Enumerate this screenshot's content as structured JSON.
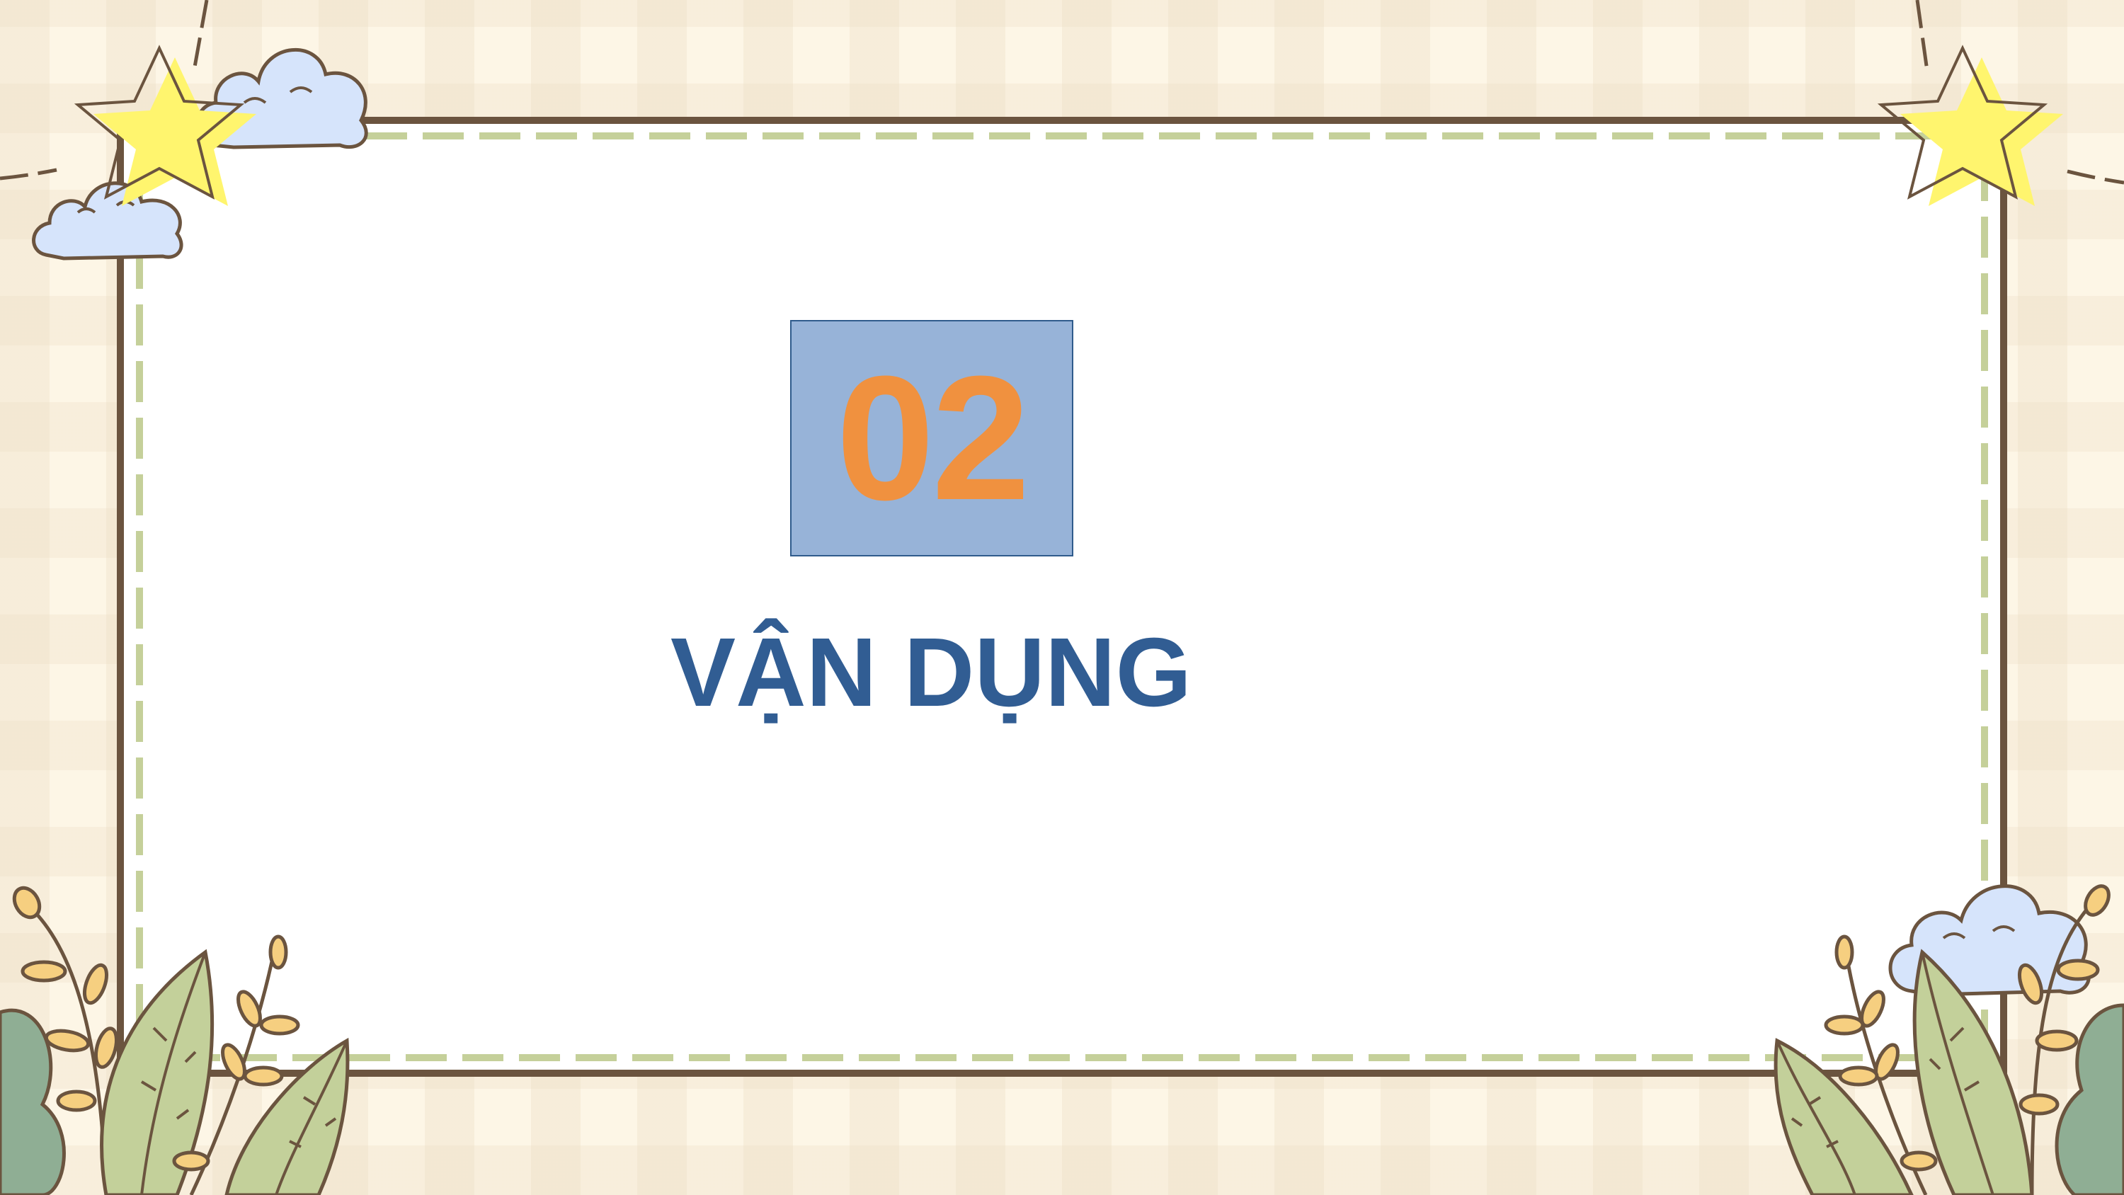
{
  "slide": {
    "number": "02",
    "title": "VẬN DỤNG"
  },
  "colors": {
    "background": "#fdf6e6",
    "frame_border": "#6b543f",
    "dashed_line": "#c5d09a",
    "number_box_fill": "#97b3d8",
    "number_text": "#f0913f",
    "title_text": "#315d93",
    "star_fill": "#fff56e",
    "cloud_fill": "#d6e4fb",
    "leaf_fill": "#c3d09a",
    "dark_leaf_fill": "#8fae94",
    "berry_fill": "#f6cf80"
  },
  "decorations": [
    "star-icon",
    "cloud-icon",
    "leaf-icon",
    "berry-branch-icon"
  ]
}
